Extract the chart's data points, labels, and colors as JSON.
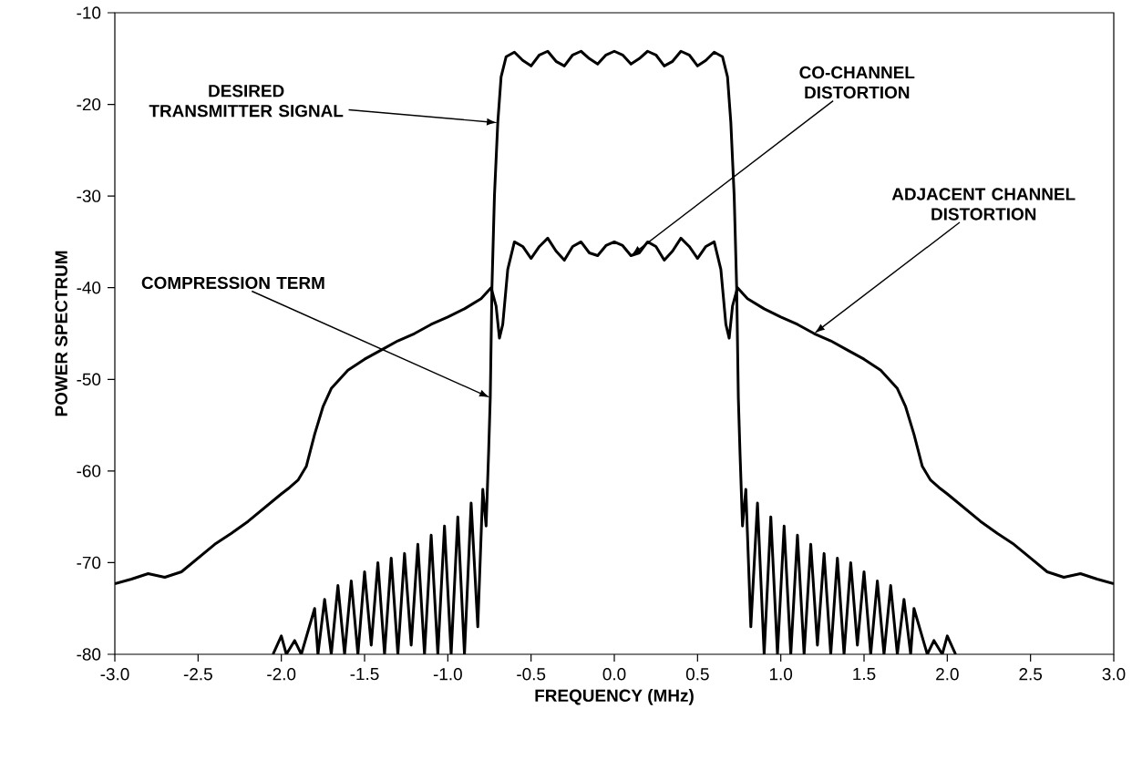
{
  "chart_data": {
    "type": "line",
    "xlabel": "FREQUENCY (MHz)",
    "ylabel": "POWER SPECTRUM",
    "marker": "none",
    "line_style": "solid",
    "xlim": [
      -3,
      3
    ],
    "ylim": [
      -80,
      -10
    ],
    "xticks": [
      {
        "value": -3,
        "label": "-3.0"
      },
      {
        "value": -2.5,
        "label": "-2.5"
      },
      {
        "value": -2,
        "label": "-2.0"
      },
      {
        "value": -1.5,
        "label": "-1.5"
      },
      {
        "value": -1,
        "label": "-1.0"
      },
      {
        "value": -0.5,
        "label": "-0.5"
      },
      {
        "value": 0,
        "label": "0.0"
      },
      {
        "value": 0.5,
        "label": "0.5"
      },
      {
        "value": 1,
        "label": "1.0"
      },
      {
        "value": 1.5,
        "label": "1.5"
      },
      {
        "value": 2,
        "label": "2.0"
      },
      {
        "value": 2.5,
        "label": "2.5"
      },
      {
        "value": 3,
        "label": "3.0"
      }
    ],
    "yticks": [
      -80,
      -70,
      -60,
      -50,
      -40,
      -30,
      -20,
      -10
    ],
    "series": [
      {
        "color": "#000000",
        "x": [
          -2.05,
          -2.0,
          -1.97,
          -1.92,
          -1.88,
          -1.8,
          -1.78,
          -1.74,
          -1.7,
          -1.66,
          -1.62,
          -1.58,
          -1.54,
          -1.5,
          -1.46,
          -1.42,
          -1.38,
          -1.34,
          -1.3,
          -1.26,
          -1.22,
          -1.18,
          -1.14,
          -1.1,
          -1.06,
          -1.02,
          -0.98,
          -0.94,
          -0.9,
          -0.86,
          -0.82,
          -0.79,
          -0.77,
          -0.755,
          -0.745,
          -0.735,
          -0.72,
          -0.7,
          -0.68,
          -0.65,
          -0.6,
          -0.55,
          -0.5,
          -0.45,
          -0.4,
          -0.35,
          -0.3,
          -0.25,
          -0.2,
          -0.15,
          -0.1,
          -0.05,
          0,
          0.05,
          0.1,
          0.15,
          0.2,
          0.25,
          0.3,
          0.35,
          0.4,
          0.45,
          0.5,
          0.55,
          0.6,
          0.65,
          0.68,
          0.7,
          0.72,
          0.735,
          0.745,
          0.755,
          0.77,
          0.79,
          0.82,
          0.86,
          0.9,
          0.94,
          0.98,
          1.02,
          1.06,
          1.1,
          1.14,
          1.18,
          1.22,
          1.26,
          1.3,
          1.34,
          1.38,
          1.42,
          1.46,
          1.5,
          1.54,
          1.58,
          1.62,
          1.66,
          1.7,
          1.74,
          1.78,
          1.8,
          1.88,
          1.92,
          1.97,
          2.0,
          2.05
        ],
        "values": [
          -80,
          -78,
          -80,
          -78.5,
          -80,
          -75,
          -80,
          -74,
          -80,
          -72.5,
          -80,
          -72,
          -80,
          -71,
          -79,
          -70,
          -80,
          -69.5,
          -80,
          -69,
          -79,
          -68,
          -80,
          -67,
          -80,
          -66,
          -80,
          -65,
          -80,
          -63.5,
          -77,
          -62,
          -66,
          -58,
          -52,
          -40,
          -30,
          -22,
          -17,
          -14.8,
          -14.3,
          -15.2,
          -15.8,
          -14.6,
          -14.2,
          -15.3,
          -15.8,
          -14.6,
          -14.2,
          -15.0,
          -15.6,
          -14.6,
          -14.2,
          -14.6,
          -15.6,
          -15.0,
          -14.2,
          -14.6,
          -15.8,
          -15.3,
          -14.2,
          -14.6,
          -15.8,
          -15.2,
          -14.3,
          -14.8,
          -17,
          -22,
          -30,
          -40,
          -52,
          -58,
          -66,
          -62,
          -77,
          -63.5,
          -80,
          -65,
          -80,
          -66,
          -80,
          -67,
          -80,
          -68,
          -79,
          -69,
          -80,
          -69.5,
          -80,
          -70,
          -79,
          -71,
          -80,
          -72,
          -80,
          -72.5,
          -80,
          -74,
          -80,
          -75,
          -80,
          -78.5,
          -80,
          -78,
          -80
        ]
      },
      {
        "color": "#000000",
        "x": [
          -3.0,
          -2.9,
          -2.8,
          -2.7,
          -2.6,
          -2.5,
          -2.4,
          -2.3,
          -2.2,
          -2.1,
          -2.0,
          -1.95,
          -1.9,
          -1.85,
          -1.8,
          -1.75,
          -1.7,
          -1.6,
          -1.5,
          -1.4,
          -1.3,
          -1.2,
          -1.1,
          -1.0,
          -0.9,
          -0.8,
          -0.74,
          -0.71,
          -0.69,
          -0.67,
          -0.64,
          -0.6,
          -0.55,
          -0.5,
          -0.45,
          -0.4,
          -0.35,
          -0.3,
          -0.25,
          -0.2,
          -0.15,
          -0.1,
          -0.05,
          0,
          0.05,
          0.1,
          0.15,
          0.2,
          0.25,
          0.3,
          0.35,
          0.4,
          0.45,
          0.5,
          0.55,
          0.6,
          0.64,
          0.67,
          0.69,
          0.71,
          0.74,
          0.8,
          0.9,
          1.0,
          1.1,
          1.2,
          1.3,
          1.4,
          1.5,
          1.6,
          1.7,
          1.75,
          1.8,
          1.85,
          1.9,
          1.95,
          2.0,
          2.1,
          2.2,
          2.3,
          2.4,
          2.5,
          2.6,
          2.7,
          2.8,
          2.9,
          3.0
        ],
        "values": [
          -72.3,
          -71.8,
          -71.2,
          -71.6,
          -71.0,
          -69.5,
          -68,
          -66.8,
          -65.5,
          -64,
          -62.5,
          -61.8,
          -61,
          -59.5,
          -56,
          -53,
          -51,
          -49,
          -47.8,
          -46.8,
          -45.8,
          -45,
          -44,
          -43.2,
          -42.3,
          -41.2,
          -40,
          -42,
          -45.5,
          -44,
          -38,
          -35,
          -35.5,
          -36.8,
          -35.5,
          -34.6,
          -36,
          -37,
          -35.5,
          -35,
          -36.2,
          -36.5,
          -35.4,
          -35,
          -35.4,
          -36.5,
          -36.2,
          -35,
          -35.5,
          -37,
          -36,
          -34.6,
          -35.5,
          -36.8,
          -35.5,
          -35,
          -38,
          -44,
          -45.5,
          -42,
          -40,
          -41.2,
          -42.3,
          -43.2,
          -44,
          -45,
          -45.8,
          -46.8,
          -47.8,
          -49,
          -51,
          -53,
          -56,
          -59.5,
          -61,
          -61.8,
          -62.5,
          -64,
          -65.5,
          -66.8,
          -68,
          -69.5,
          -71.0,
          -71.6,
          -71.2,
          -71.8,
          -72.3
        ]
      }
    ],
    "annotations": [
      {
        "text": "DESIRED TRANSMITTER SIGNAL",
        "x": -0.7,
        "y": -22
      },
      {
        "text": "CO-CHANNEL DISTORTION",
        "x": 0.1,
        "y": -36.5
      },
      {
        "text": "ADJACENT CHANNEL DISTORTION",
        "x": 1.2,
        "y": -45
      },
      {
        "text": "COMPRESSION TERM",
        "x": -0.745,
        "y": -52
      }
    ]
  }
}
